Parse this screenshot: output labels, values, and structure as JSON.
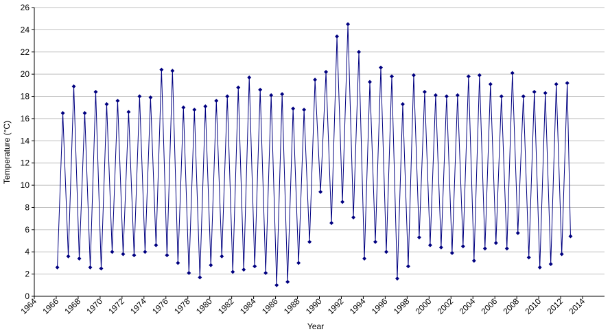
{
  "chart_data": {
    "type": "line",
    "x_label": "Year",
    "y_label": "Temperature (°C)",
    "grid": true,
    "marker": "diamond",
    "xlim": [
      1964,
      2016
    ],
    "xticks": [
      1964,
      1966,
      1968,
      1970,
      1972,
      1974,
      1976,
      1978,
      1980,
      1982,
      1984,
      1986,
      1988,
      1990,
      1992,
      1994,
      1996,
      1998,
      2000,
      2002,
      2004,
      2006,
      2008,
      2010,
      2012,
      2014
    ],
    "ylim": [
      0,
      26
    ],
    "yticks": [
      0,
      2,
      4,
      6,
      8,
      10,
      12,
      14,
      16,
      18,
      20,
      22,
      24,
      26
    ],
    "x": [
      1966.1,
      1966.6,
      1967.1,
      1967.6,
      1968.1,
      1968.6,
      1969.1,
      1969.6,
      1970.1,
      1970.6,
      1971.1,
      1971.6,
      1972.1,
      1972.6,
      1973.1,
      1973.6,
      1974.1,
      1974.6,
      1975.1,
      1975.6,
      1976.1,
      1976.6,
      1977.1,
      1977.6,
      1978.1,
      1978.6,
      1979.1,
      1979.6,
      1980.1,
      1980.6,
      1981.1,
      1981.6,
      1982.1,
      1982.6,
      1983.1,
      1983.6,
      1984.1,
      1984.6,
      1985.1,
      1985.6,
      1986.1,
      1986.6,
      1987.1,
      1987.6,
      1988.1,
      1988.6,
      1989.1,
      1989.6,
      1990.1,
      1990.6,
      1991.1,
      1991.6,
      1992.1,
      1992.6,
      1993.1,
      1993.6,
      1994.1,
      1994.6,
      1995.1,
      1995.6,
      1996.1,
      1996.6,
      1997.1,
      1997.6,
      1998.1,
      1998.6,
      1999.1,
      1999.6,
      2000.1,
      2000.6,
      2001.1,
      2001.6,
      2002.1,
      2002.6,
      2003.1,
      2003.6,
      2004.1,
      2004.6,
      2005.1,
      2005.6,
      2006.1,
      2006.6,
      2007.1,
      2007.6,
      2008.1,
      2008.6,
      2009.1,
      2009.6,
      2010.1,
      2010.6,
      2011.1,
      2011.6,
      2012.1,
      2012.6,
      2012.9
    ],
    "series": [
      {
        "color": "#000080",
        "values": [
          2.6,
          16.5,
          3.6,
          18.9,
          3.4,
          16.5,
          2.6,
          18.4,
          2.5,
          17.3,
          4.0,
          17.6,
          3.8,
          16.6,
          3.7,
          18.0,
          4.0,
          17.9,
          4.6,
          20.4,
          3.7,
          20.3,
          3.0,
          17.0,
          2.1,
          16.8,
          1.7,
          17.1,
          2.8,
          17.6,
          3.6,
          18.0,
          2.2,
          18.8,
          2.4,
          19.7,
          2.7,
          18.6,
          2.1,
          18.1,
          1.0,
          18.2,
          1.3,
          16.9,
          3.0,
          16.8,
          4.9,
          19.5,
          9.4,
          20.2,
          6.6,
          23.4,
          8.5,
          24.5,
          7.1,
          22.0,
          3.4,
          19.3,
          4.9,
          20.6,
          4.0,
          19.8,
          1.6,
          17.3,
          2.7,
          19.9,
          5.3,
          18.4,
          4.6,
          18.1,
          4.4,
          18.0,
          3.9,
          18.1,
          4.5,
          19.8,
          3.2,
          19.9,
          4.3,
          19.1,
          4.8,
          18.0,
          4.3,
          20.1,
          5.7,
          18.0,
          3.5,
          18.4,
          2.6,
          18.3,
          2.9,
          19.1,
          3.8,
          19.2,
          5.4
        ]
      }
    ]
  }
}
